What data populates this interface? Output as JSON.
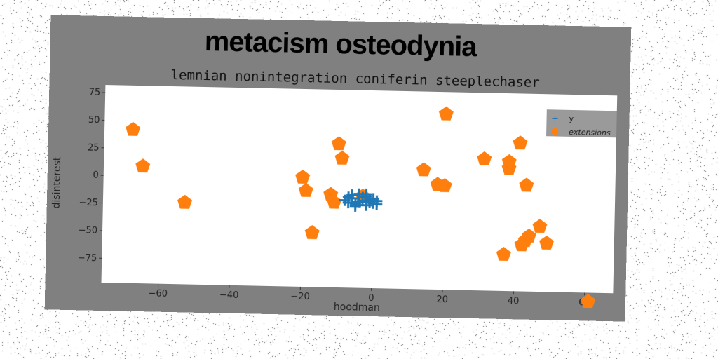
{
  "chart_data": {
    "type": "scatter",
    "title": "metacism osteodynia",
    "subtitle": "lemnian nonintegration coniferin steeplechaser",
    "xlabel": "hoodman",
    "ylabel": "disinterest",
    "xlim": [
      -76,
      68
    ],
    "ylim": [
      -97,
      82
    ],
    "xticks": [
      -60,
      -40,
      -20,
      0,
      20,
      40,
      60
    ],
    "yticks": [
      -75,
      -50,
      -25,
      0,
      25,
      50,
      75
    ],
    "grid": false,
    "legend_position": "top-right",
    "series": [
      {
        "name": "y",
        "marker": "plus",
        "color": "#1f77b4",
        "x": [
          -8,
          -7,
          -6,
          -5,
          -4,
          -3,
          -2,
          -1,
          0,
          1,
          -6,
          -4,
          -2,
          0,
          -5,
          -3,
          -1,
          -7,
          1,
          -2
        ],
        "y": [
          -18,
          -20,
          -16,
          -21,
          -19,
          -15,
          -22,
          -17,
          -20,
          -21,
          -13,
          -12,
          -14,
          -16,
          -23,
          -18,
          -19,
          -15,
          -18,
          -12
        ]
      },
      {
        "name": "extensions",
        "marker": "pentagon",
        "color": "#ff7f0e",
        "x": [
          -68,
          -65,
          -53,
          -20,
          -19,
          -17,
          -12,
          -11,
          -10,
          -9,
          -3,
          14,
          18,
          20,
          20,
          31,
          37,
          38,
          38,
          41,
          42,
          43,
          43,
          44,
          47,
          49,
          61
        ],
        "y": [
          42,
          9,
          -23,
          2,
          -10,
          -48,
          -13,
          -20,
          33,
          20,
          -14,
          11,
          -2,
          -3,
          62,
          22,
          -64,
          14,
          20,
          37,
          -55,
          -51,
          -1,
          -47,
          -38,
          -53,
          -105
        ]
      }
    ]
  }
}
